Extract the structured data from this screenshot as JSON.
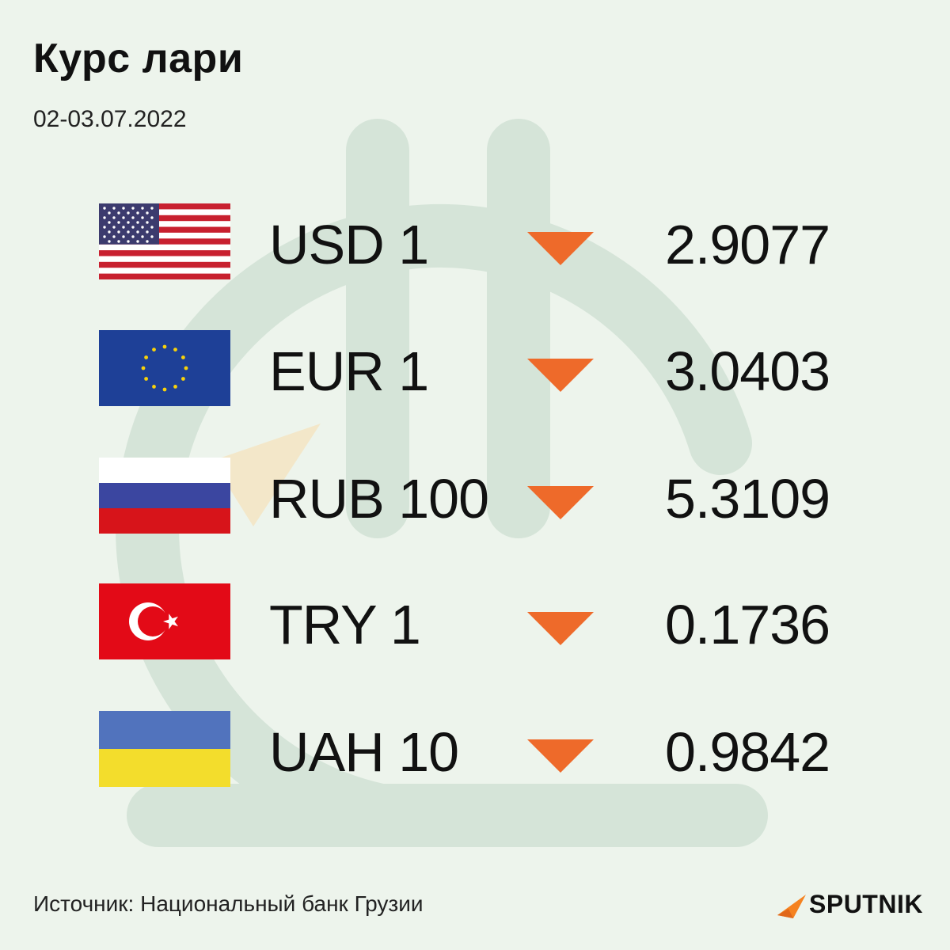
{
  "header": {
    "title": "Курс лари",
    "date": "02-03.07.2022"
  },
  "rates": [
    {
      "flag": "usa-flag",
      "code": "USD 1",
      "trend": "down",
      "value": "2.9077"
    },
    {
      "flag": "eu-flag",
      "code": "EUR 1",
      "trend": "down",
      "value": "3.0403"
    },
    {
      "flag": "russia-flag",
      "code": "RUB 100",
      "trend": "down",
      "value": "5.3109"
    },
    {
      "flag": "turkey-flag",
      "code": "TRY 1",
      "trend": "down",
      "value": "0.1736"
    },
    {
      "flag": "ukraine-flag",
      "code": "UAH 10",
      "trend": "down",
      "value": "0.9842"
    }
  ],
  "footer": {
    "source": "Источник: Национальный банк Грузии",
    "logo_text": "SPUTNIK"
  },
  "colors": {
    "background": "#edf4ec",
    "watermark": "#d5e4d8",
    "arrow_down": "#ee6a2a",
    "text": "#111111"
  }
}
